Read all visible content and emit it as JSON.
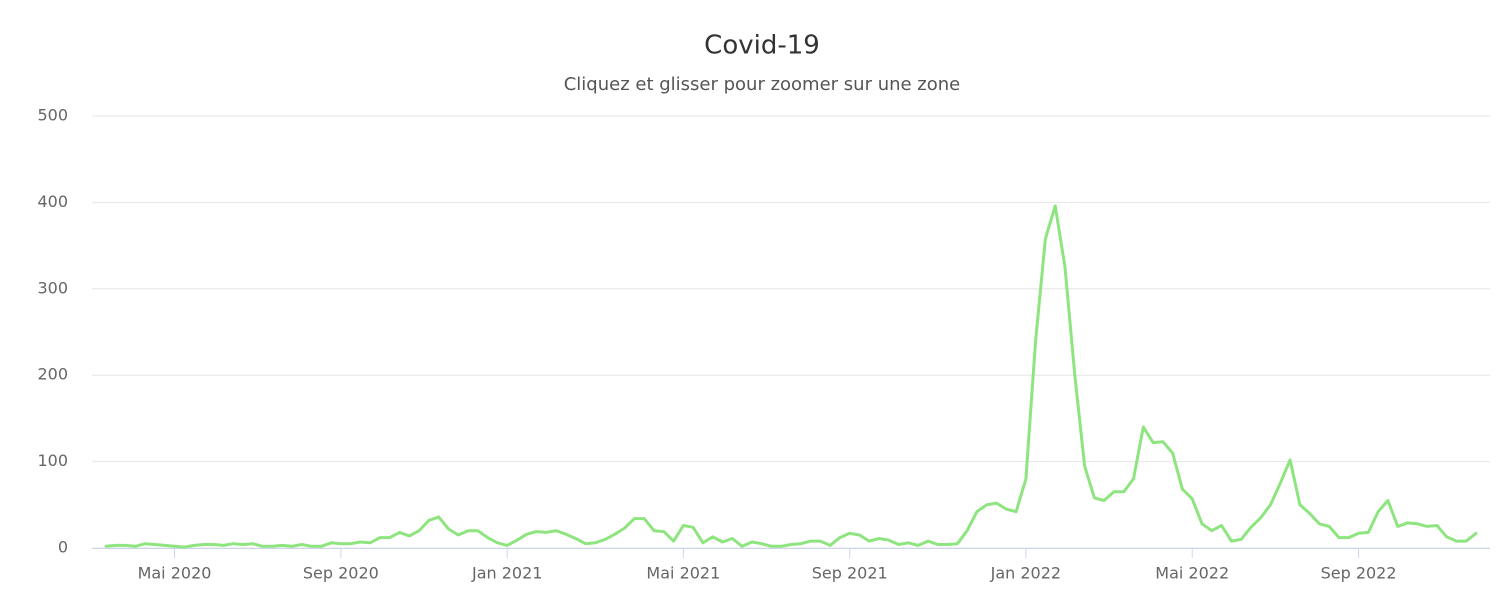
{
  "chart_data": {
    "type": "line",
    "title": "Covid-19",
    "subtitle": "Cliquez et glisser pour zoomer sur une zone",
    "categories": [
      null,
      null,
      null,
      null,
      null,
      null,
      null,
      "Mai 2020",
      null,
      null,
      null,
      null,
      null,
      null,
      null,
      null,
      null,
      null,
      null,
      null,
      null,
      null,
      null,
      null,
      "Sep 2020",
      null,
      null,
      null,
      null,
      null,
      null,
      null,
      null,
      null,
      null,
      null,
      null,
      null,
      null,
      null,
      null,
      "Jan 2021",
      null,
      null,
      null,
      null,
      null,
      null,
      null,
      null,
      null,
      null,
      null,
      null,
      null,
      null,
      null,
      null,
      null,
      "Mai 2021",
      null,
      null,
      null,
      null,
      null,
      null,
      null,
      null,
      null,
      null,
      null,
      null,
      null,
      null,
      null,
      null,
      "Sep 2021",
      null,
      null,
      null,
      null,
      null,
      null,
      null,
      null,
      null,
      null,
      null,
      null,
      null,
      null,
      null,
      null,
      null,
      "Jan 2022",
      null,
      null,
      null,
      null,
      null,
      null,
      null,
      null,
      null,
      null,
      null,
      null,
      null,
      null,
      null,
      null,
      "Mai 2022",
      null,
      null,
      null,
      null,
      null,
      null,
      null,
      null,
      null,
      null,
      null,
      null,
      null,
      null,
      null,
      null,
      "Sep 2022",
      null,
      null,
      null,
      null,
      null,
      null,
      null,
      null,
      null,
      null,
      null,
      null
    ],
    "values": [
      2,
      3,
      3,
      2,
      5,
      4,
      3,
      2,
      1,
      3,
      4,
      4,
      3,
      5,
      4,
      5,
      2,
      2,
      3,
      2,
      4,
      2,
      2,
      6,
      5,
      5,
      7,
      6,
      12,
      12,
      18,
      14,
      20,
      32,
      36,
      22,
      15,
      20,
      20,
      12,
      6,
      3,
      9,
      16,
      19,
      18,
      20,
      16,
      11,
      5,
      6,
      10,
      16,
      23,
      34,
      34,
      20,
      19,
      8,
      26,
      24,
      6,
      13,
      7,
      11,
      2,
      7,
      5,
      2,
      2,
      4,
      5,
      8,
      8,
      3,
      12,
      17,
      15,
      8,
      11,
      9,
      4,
      6,
      3,
      8,
      4,
      4,
      5,
      20,
      42,
      50,
      52,
      45,
      42,
      80,
      240,
      358,
      396,
      325,
      200,
      95,
      58,
      55,
      65,
      65,
      80,
      140,
      122,
      123,
      110,
      68,
      57,
      28,
      20,
      26,
      8,
      10,
      24,
      35,
      50,
      75,
      102,
      50,
      40,
      28,
      25,
      12,
      12,
      17,
      18,
      42,
      55,
      25,
      29,
      28,
      25,
      26,
      13,
      8,
      8,
      17
    ],
    "color": "#8ee57f",
    "ylim": [
      0,
      500
    ],
    "yticks": [
      0,
      100,
      200,
      300,
      400,
      500
    ],
    "grid": true
  }
}
